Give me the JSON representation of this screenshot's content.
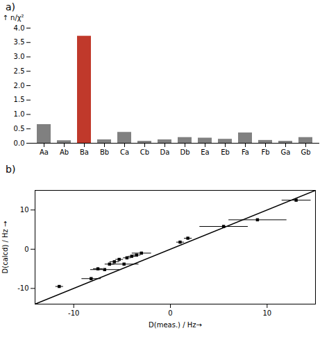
{
  "chart_data": [
    {
      "type": "bar",
      "title": "a)",
      "y_label": "↑ n/χ²",
      "categories": [
        "Aa",
        "Ab",
        "Ba",
        "Bb",
        "Ca",
        "Cb",
        "Da",
        "Db",
        "Ea",
        "Eb",
        "Fa",
        "Fb",
        "Ga",
        "Gb"
      ],
      "values": [
        0.65,
        0.09,
        3.72,
        0.12,
        0.38,
        0.07,
        0.12,
        0.2,
        0.18,
        0.14,
        0.36,
        0.1,
        0.07,
        0.2
      ],
      "colors": [
        "#808080",
        "#808080",
        "#c0392b",
        "#808080",
        "#808080",
        "#808080",
        "#808080",
        "#808080",
        "#808080",
        "#808080",
        "#808080",
        "#808080",
        "#808080",
        "#808080"
      ],
      "ylim": [
        0,
        4.0
      ],
      "yticks": [
        {
          "value": 0,
          "label": "0.0"
        },
        0.5,
        {
          "value": 1,
          "label": "1.0"
        },
        1.5,
        {
          "value": 2,
          "label": "2.0"
        },
        2.5,
        {
          "value": 3,
          "label": "3.0"
        },
        3.5,
        {
          "value": 4,
          "label": "4.0"
        }
      ],
      "grid": false
    },
    {
      "type": "scatter",
      "title": "b)",
      "x_label": "D(meas.) / Hz→",
      "y_label": "D(calcd) / Hz →",
      "x": [
        -11.5,
        -8.2,
        -7.5,
        -6.8,
        -6.3,
        -5.8,
        -5.3,
        -4.8,
        -4.5,
        -4.0,
        -3.5,
        -3.0,
        1.0,
        1.8,
        5.5,
        9.0,
        13.0
      ],
      "y": [
        -9.5,
        -7.5,
        -5.0,
        -5.2,
        -3.8,
        -3.2,
        -2.6,
        -3.8,
        -2.2,
        -1.8,
        -1.5,
        -1.0,
        1.8,
        2.8,
        5.8,
        7.5,
        12.5
      ],
      "xerr": [
        0.4,
        1.0,
        0.5,
        1.5,
        0.5,
        0.5,
        0.4,
        1.5,
        0.4,
        0.4,
        0.4,
        1.0,
        0.4,
        0.4,
        2.5,
        3.0,
        1.5
      ],
      "yerr": [
        0.3,
        0.3,
        0.3,
        0.3,
        0.3,
        0.3,
        0.3,
        0.3,
        0.3,
        0.3,
        0.3,
        0.3,
        0.3,
        0.3,
        0.3,
        0.3,
        0.3
      ],
      "line_x": [
        -14,
        15
      ],
      "line_y": [
        -14,
        15
      ],
      "color": "#000000",
      "marker": "square",
      "xlim": [
        -14,
        15
      ],
      "ylim": [
        -14,
        15
      ],
      "xticks": [
        -10,
        0,
        10
      ],
      "yticks": [
        -10,
        0,
        10
      ],
      "grid": false
    }
  ]
}
